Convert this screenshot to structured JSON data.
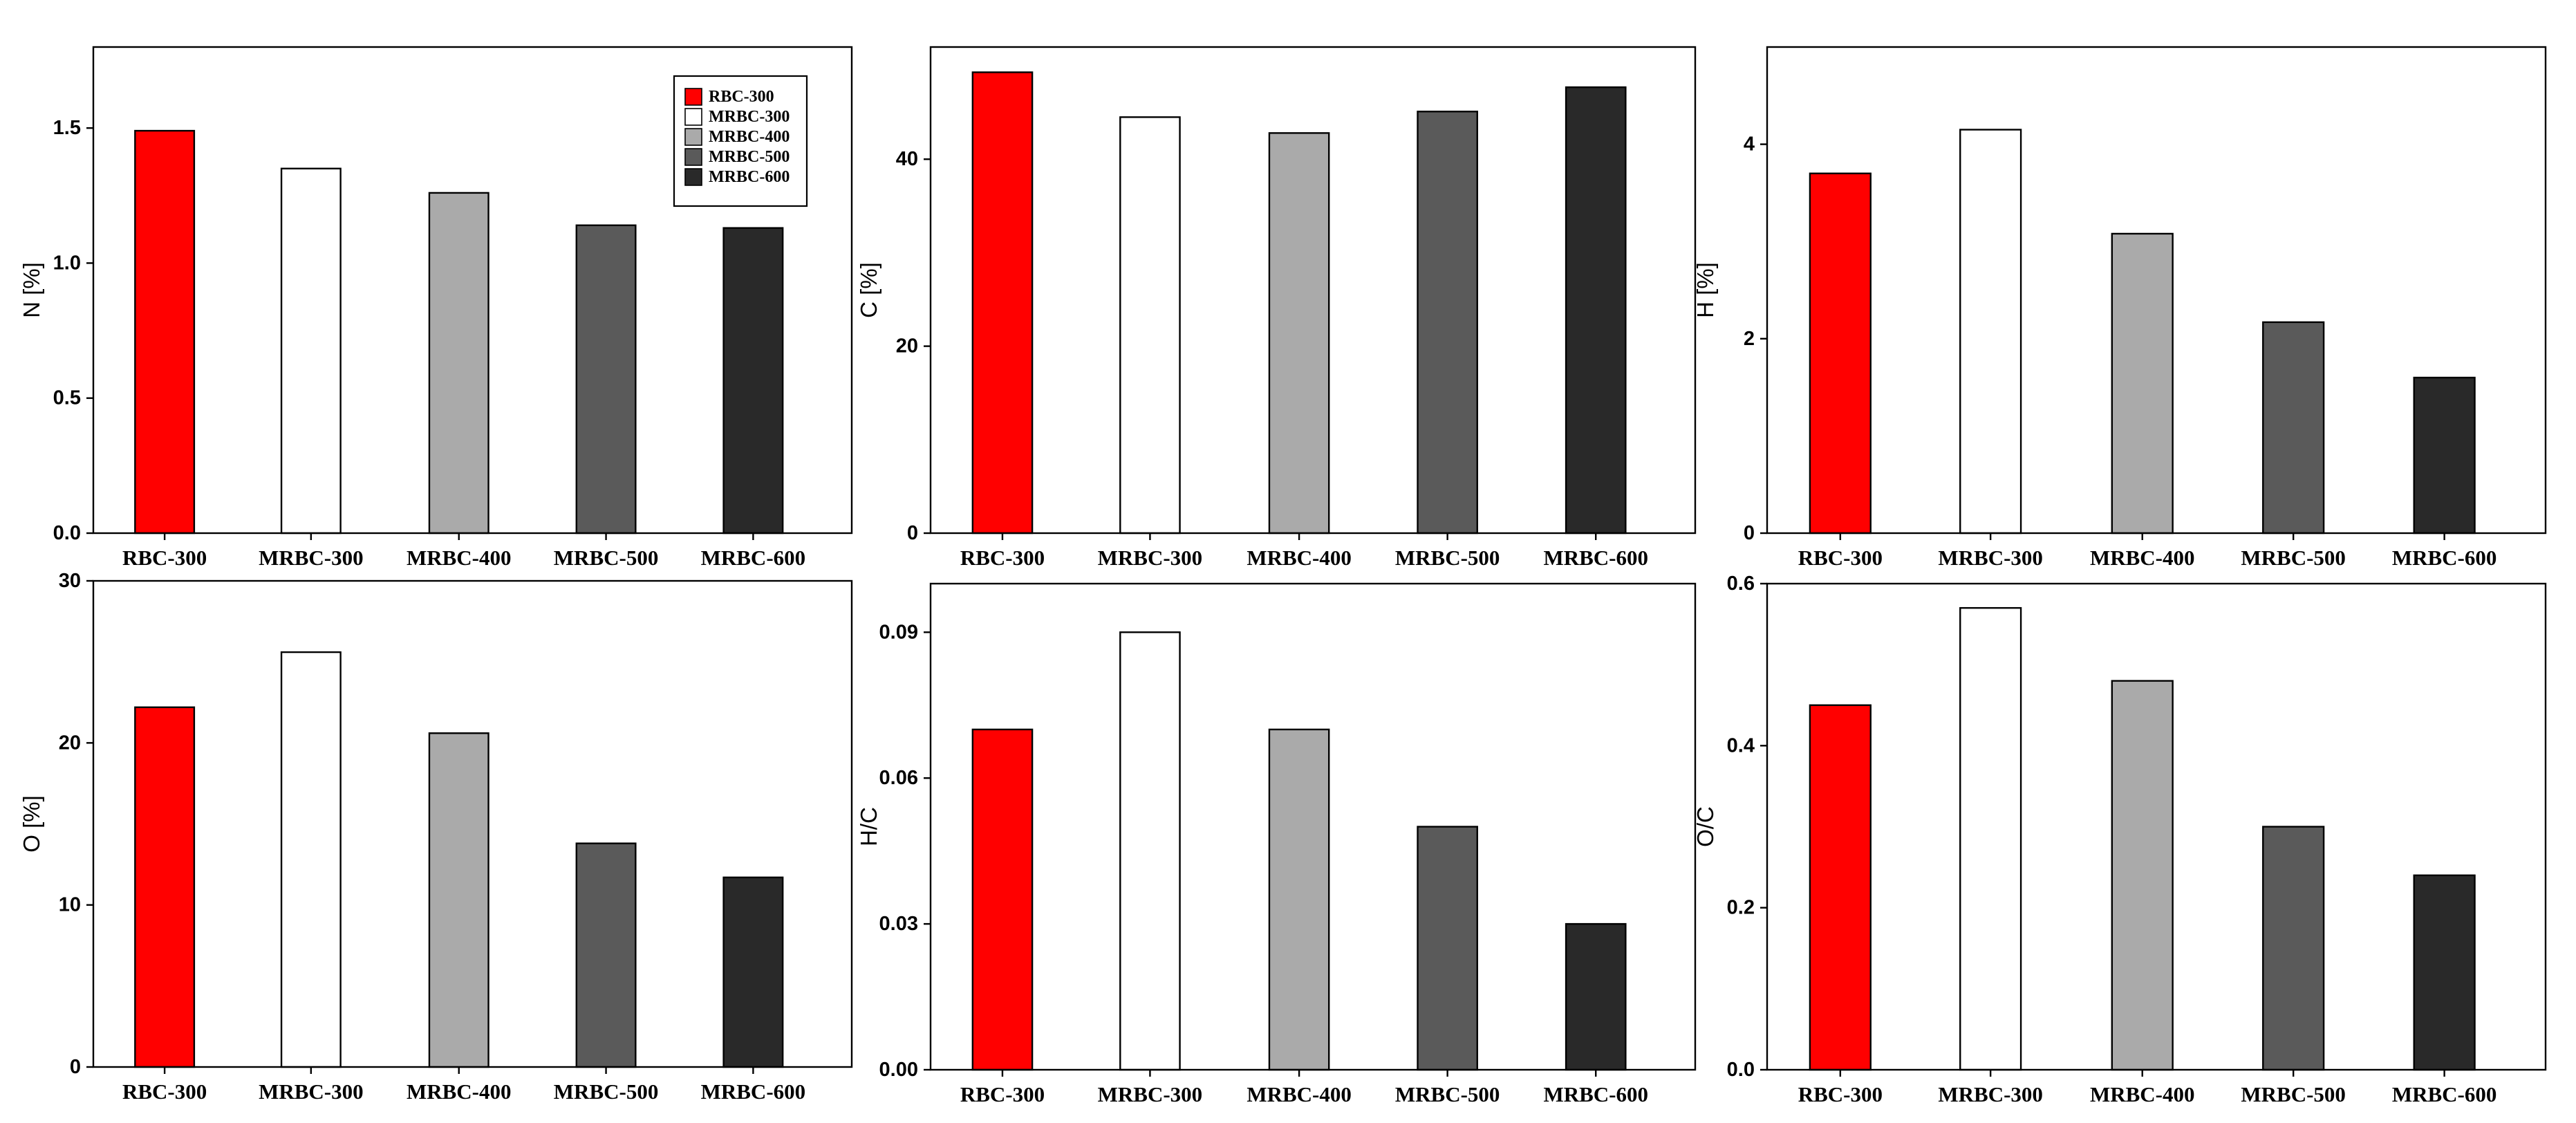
{
  "chart_data": [
    {
      "type": "bar",
      "id": "n-panel",
      "categories": [
        "RBC-300",
        "MRBC-300",
        "MRBC-400",
        "MRBC-500",
        "MRBC-600"
      ],
      "values": [
        1.49,
        1.35,
        1.26,
        1.14,
        1.13
      ],
      "ylabel": "N [%]",
      "ylim": [
        0,
        1.8
      ],
      "yticks": [
        0,
        0.5,
        1.0,
        1.5
      ],
      "ytick_labels": [
        "0.0",
        "0.5",
        "1.0",
        "1.5"
      ],
      "legend": {
        "placement": "top-right"
      }
    },
    {
      "type": "bar",
      "id": "c-panel",
      "categories": [
        "RBC-300",
        "MRBC-300",
        "MRBC-400",
        "MRBC-500",
        "MRBC-600"
      ],
      "values": [
        49.3,
        44.5,
        42.8,
        45.1,
        47.7
      ],
      "ylabel": "C [%]",
      "ylim": [
        0,
        52
      ],
      "yticks": [
        0,
        20,
        40
      ],
      "ytick_labels": [
        "0",
        "20",
        "40"
      ]
    },
    {
      "type": "bar",
      "id": "h-panel",
      "categories": [
        "RBC-300",
        "MRBC-300",
        "MRBC-400",
        "MRBC-500",
        "MRBC-600"
      ],
      "values": [
        3.7,
        4.15,
        3.08,
        2.17,
        1.6
      ],
      "ylabel": "H [%]",
      "ylim": [
        0,
        5
      ],
      "yticks": [
        0,
        2,
        4
      ],
      "ytick_labels": [
        "0",
        "2",
        "4"
      ]
    },
    {
      "type": "bar",
      "id": "o-panel",
      "categories": [
        "RBC-300",
        "MRBC-300",
        "MRBC-400",
        "MRBC-500",
        "MRBC-600"
      ],
      "values": [
        22.2,
        25.6,
        20.6,
        13.8,
        11.7
      ],
      "ylabel": "O [%]",
      "ylim": [
        0,
        30
      ],
      "yticks": [
        0,
        10,
        20,
        30
      ],
      "ytick_labels": [
        "0",
        "10",
        "20",
        "30"
      ]
    },
    {
      "type": "bar",
      "id": "hc-panel",
      "categories": [
        "RBC-300",
        "MRBC-300",
        "MRBC-400",
        "MRBC-500",
        "MRBC-600"
      ],
      "values": [
        0.07,
        0.09,
        0.07,
        0.05,
        0.03
      ],
      "ylabel": "H/C",
      "ylim": [
        0,
        0.1
      ],
      "yticks": [
        0,
        0.03,
        0.06,
        0.09
      ],
      "ytick_labels": [
        "0.00",
        "0.03",
        "0.06",
        "0.09"
      ]
    },
    {
      "type": "bar",
      "id": "oc-panel",
      "categories": [
        "RBC-300",
        "MRBC-300",
        "MRBC-400",
        "MRBC-500",
        "MRBC-600"
      ],
      "values": [
        0.45,
        0.57,
        0.48,
        0.3,
        0.24
      ],
      "ylabel": "O/C",
      "ylim": [
        0,
        0.6
      ],
      "yticks": [
        0,
        0.2,
        0.4,
        0.6
      ],
      "ytick_labels": [
        "0.0",
        "0.2",
        "0.4",
        "0.6"
      ]
    }
  ],
  "legend": {
    "entries": [
      "RBC-300",
      "MRBC-300",
      "MRBC-400",
      "MRBC-500",
      "MRBC-600"
    ]
  },
  "colors": [
    "#ff0000",
    "#ffffff",
    "#aaaaaa",
    "#5a5a5a",
    "#292929"
  ]
}
